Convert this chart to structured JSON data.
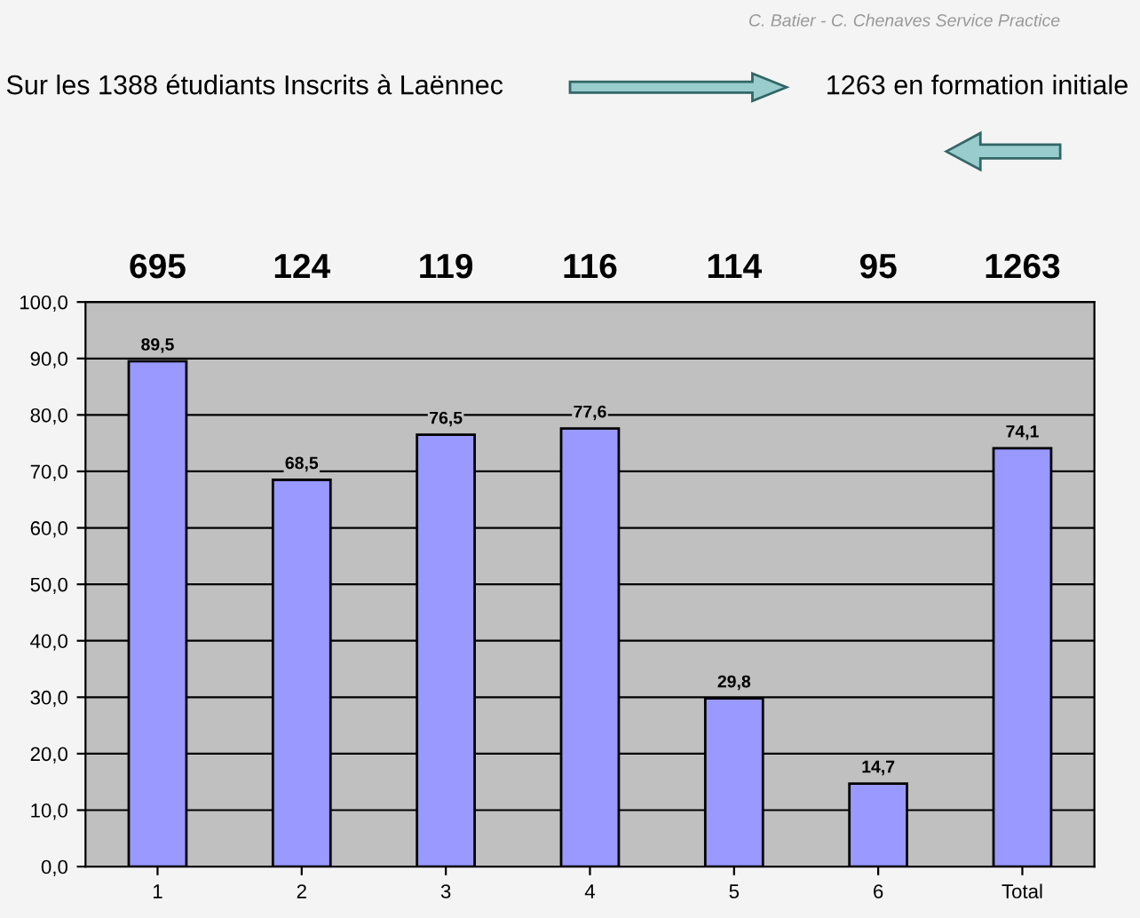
{
  "chart_data": {
    "type": "bar",
    "title": "Sur les 1388 étudiants Inscrits à Laënnec",
    "subtitle": "1263 en formation initiale",
    "categories": [
      "1",
      "2",
      "3",
      "4",
      "5",
      "6",
      "Total"
    ],
    "values": [
      89.5,
      68.5,
      76.5,
      77.6,
      29.8,
      14.7,
      74.1
    ],
    "value_labels": [
      "89,5",
      "68,5",
      "76,5",
      "77,6",
      "29,8",
      "14,7",
      "74,1"
    ],
    "color": "#9999ff",
    "ylim": [
      0,
      100
    ],
    "yticks": [
      {
        "value": 0,
        "label": "0,0"
      },
      {
        "value": 10,
        "label": "10,0"
      },
      {
        "value": 20,
        "label": "20,0"
      },
      {
        "value": 30,
        "label": "30,0"
      },
      {
        "value": 40,
        "label": "40,0"
      },
      {
        "value": 50,
        "label": "50,0"
      },
      {
        "value": 60,
        "label": "60,0"
      },
      {
        "value": 70,
        "label": "70,0"
      },
      {
        "value": 80,
        "label": "80,0"
      },
      {
        "value": 90,
        "label": "90,0"
      },
      {
        "value": 100,
        "label": "100,0"
      }
    ],
    "grid": "y",
    "annotations": [
      "695",
      "124",
      "119",
      "116",
      "114",
      "95",
      "1263",
      "C. Batier - C. Chenaves Service Practice"
    ]
  }
}
